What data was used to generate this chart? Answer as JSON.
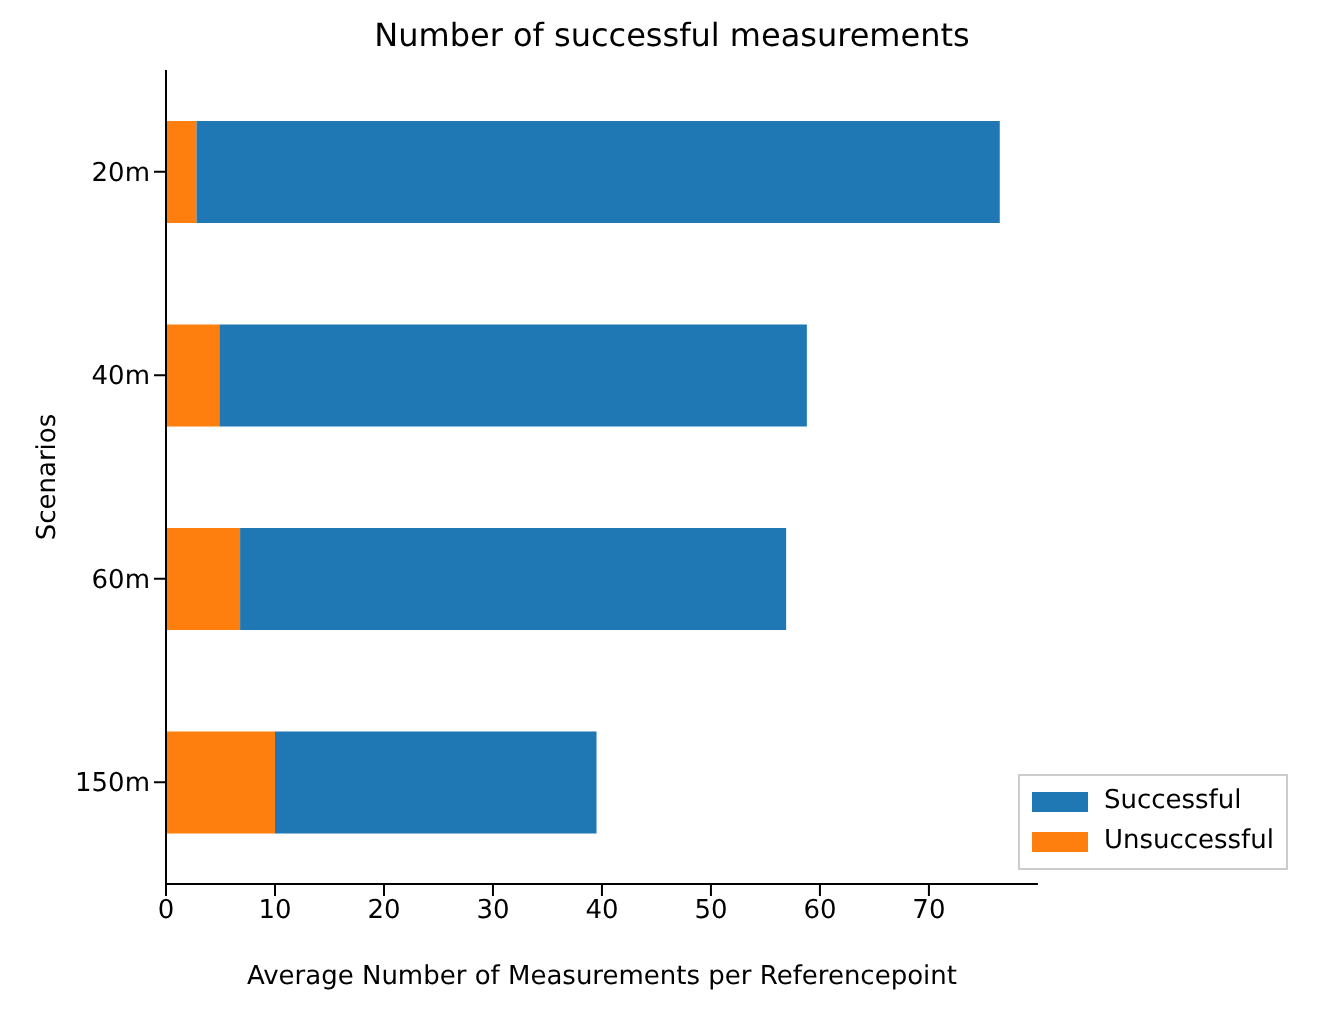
{
  "chart_data": {
    "type": "bar",
    "orientation": "horizontal",
    "stacked": true,
    "title": "Number of successful measurements",
    "xlabel": "Average Number of Measurements per Referencepoint",
    "ylabel": "Scenarios",
    "categories": [
      "20m",
      "40m",
      "60m",
      "150m"
    ],
    "series": [
      {
        "name": "Unsuccessful",
        "color": "#ff7f0e",
        "values": [
          2.8,
          4.9,
          6.8,
          10.0
        ]
      },
      {
        "name": "Successful",
        "color": "#1f77b4",
        "values": [
          73.7,
          53.9,
          50.1,
          29.5
        ]
      }
    ],
    "xlim": [
      0,
      80
    ],
    "xticks": [
      0,
      10,
      20,
      30,
      40,
      50,
      60,
      70
    ],
    "legend": "bottom right",
    "grid": false
  }
}
